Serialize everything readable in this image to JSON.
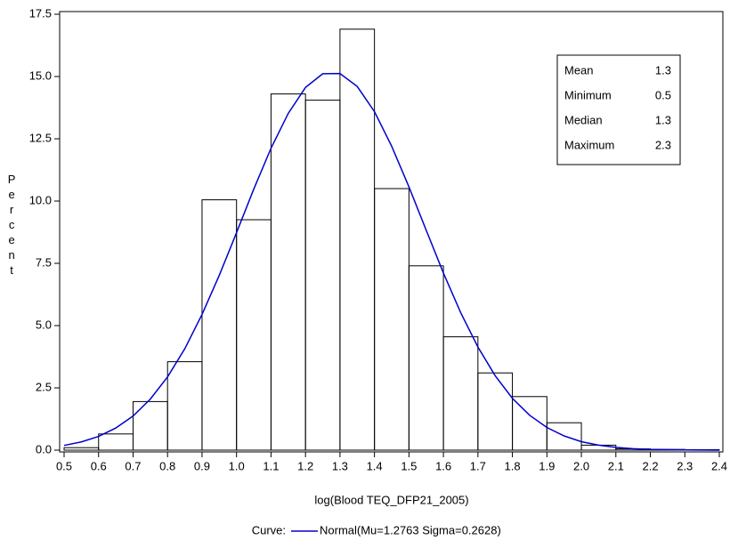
{
  "chart_data": {
    "type": "histogram",
    "x_label": "log(Blood TEQ_DFP21_2005)",
    "y_label": "Percent",
    "bins": [
      0.5,
      0.6,
      0.7,
      0.8,
      0.9,
      1.0,
      1.1,
      1.2,
      1.3,
      1.4,
      1.5,
      1.6,
      1.7,
      1.8,
      1.9,
      2.0,
      2.1,
      2.2,
      2.3,
      2.4
    ],
    "values": [
      0.1,
      0.65,
      1.95,
      3.55,
      10.05,
      9.25,
      14.3,
      14.05,
      16.9,
      10.5,
      7.4,
      4.55,
      3.1,
      2.15,
      1.1,
      0.2,
      0.05,
      0.03,
      0.02
    ],
    "color": "#000000",
    "curve": {
      "legend_title": "Curve:",
      "name": "Normal(Mu=1.2763 Sigma=0.2628)",
      "color": "#0000cc",
      "x": [
        0.5,
        0.55,
        0.6,
        0.65,
        0.7,
        0.75,
        0.8,
        0.85,
        0.9,
        0.95,
        1.0,
        1.05,
        1.1,
        1.15,
        1.2,
        1.25,
        1.3,
        1.35,
        1.4,
        1.45,
        1.5,
        1.55,
        1.6,
        1.65,
        1.7,
        1.75,
        1.8,
        1.85,
        1.9,
        1.95,
        2.0,
        2.05,
        2.1,
        2.15,
        2.2,
        2.25,
        2.3,
        2.35,
        2.4
      ],
      "values": [
        0.19,
        0.33,
        0.55,
        0.89,
        1.37,
        2.05,
        2.94,
        4.07,
        5.45,
        7.02,
        8.73,
        10.48,
        12.12,
        13.52,
        14.56,
        15.11,
        15.12,
        14.6,
        13.59,
        12.2,
        10.57,
        8.83,
        7.11,
        5.52,
        4.14,
        2.99,
        2.08,
        1.4,
        0.91,
        0.57,
        0.34,
        0.2,
        0.11,
        0.06,
        0.03,
        0.016,
        0.008,
        0.004,
        0.002
      ]
    },
    "stats": [
      {
        "label": "Mean",
        "value": 1.3
      },
      {
        "label": "Minimum",
        "value": 0.5
      },
      {
        "label": "Median",
        "value": 1.3
      },
      {
        "label": "Maximum",
        "value": 2.3
      }
    ],
    "xlim": [
      0.5,
      2.4
    ],
    "xticks": [
      0.5,
      0.6,
      0.7,
      0.8,
      0.9,
      {
        "value": 1.0,
        "label": "1.0"
      },
      1.1,
      1.2,
      1.3,
      1.4,
      1.5,
      1.6,
      1.7,
      1.8,
      1.9,
      {
        "value": 2.0,
        "label": "2.0"
      },
      2.1,
      2.2,
      2.3,
      2.4
    ],
    "ylim": [
      0,
      17.5
    ],
    "yticks": [
      {
        "value": 0,
        "label": "0.0"
      },
      2.5,
      {
        "value": 5,
        "label": "5.0"
      },
      7.5,
      {
        "value": 10,
        "label": "10.0"
      },
      12.5,
      {
        "value": 15,
        "label": "15.0"
      },
      17.5
    ]
  }
}
